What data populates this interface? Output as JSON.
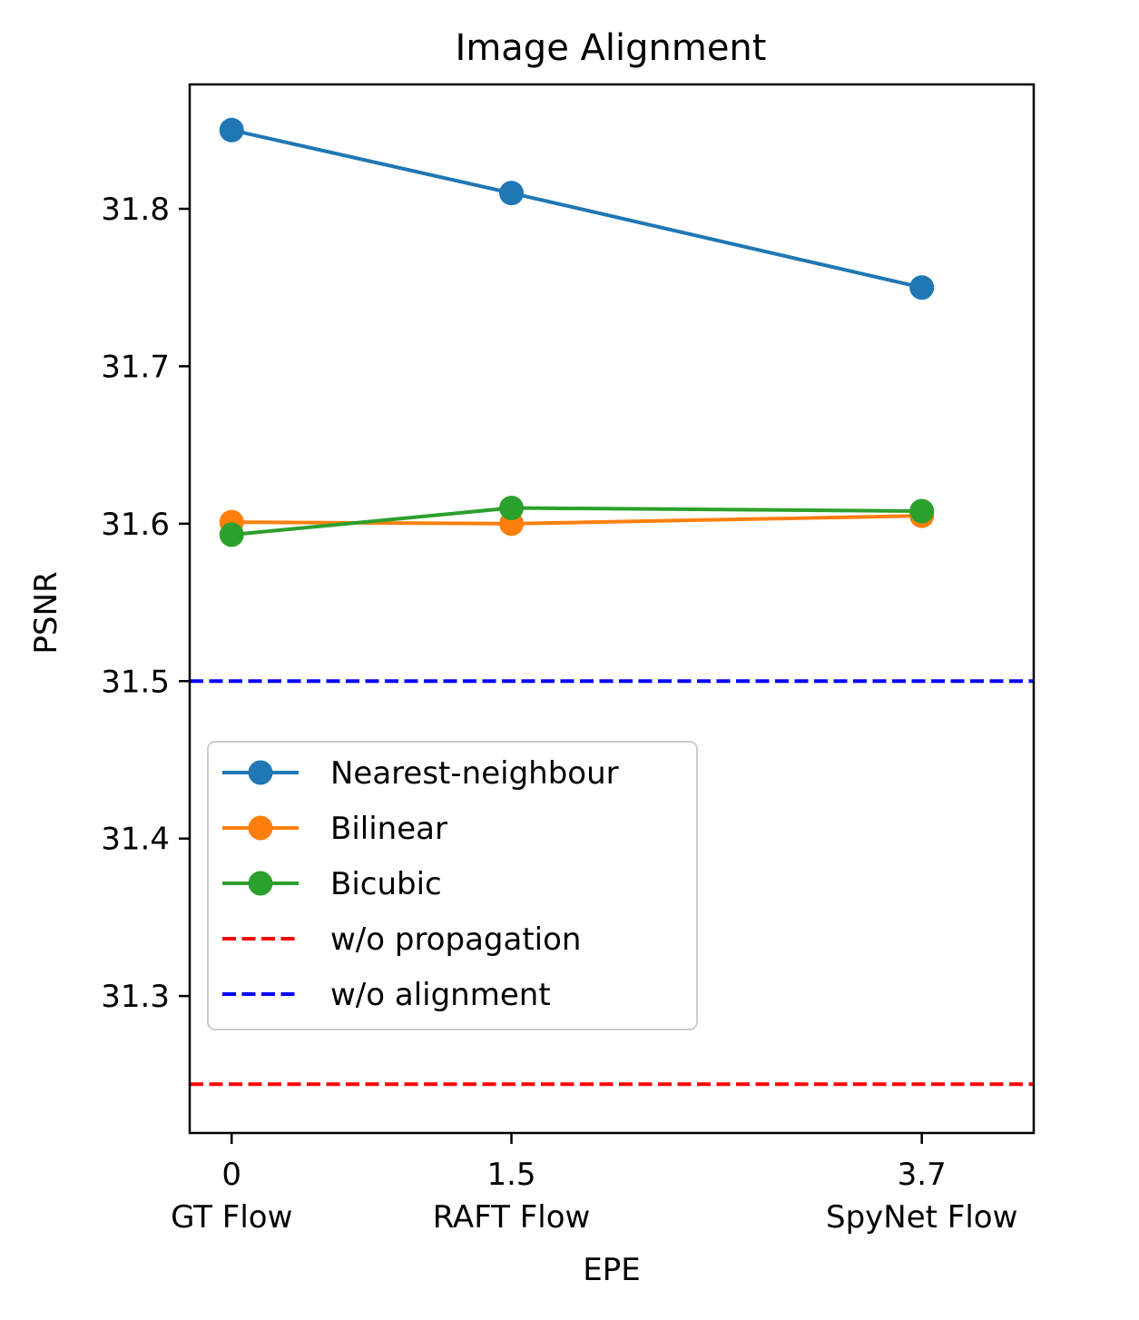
{
  "chart_data": {
    "type": "line",
    "title": "Image Alignment",
    "xlabel": "EPE",
    "ylabel": "PSNR",
    "x": [
      0,
      1.5,
      3.7
    ],
    "x_tick_values": [
      0,
      1.5,
      3.7
    ],
    "x_tick_labels": [
      "0",
      "1.5",
      "3.7"
    ],
    "x_tick_sublabels": [
      "GT Flow",
      "RAFT Flow",
      "SpyNet Flow"
    ],
    "xlim": [
      -0.225,
      4.3
    ],
    "y_ticks": [
      31.3,
      31.4,
      31.5,
      31.6,
      31.7,
      31.8
    ],
    "y_tick_labels": [
      "31.3",
      "31.4",
      "31.5",
      "31.6",
      "31.7",
      "31.8"
    ],
    "ylim": [
      31.213,
      31.879
    ],
    "grid": false,
    "legend_position": "lower-left",
    "series": [
      {
        "name": "Nearest-neighbour",
        "color": "#1f77b4",
        "values": [
          31.85,
          31.81,
          31.75
        ]
      },
      {
        "name": "Bilinear",
        "color": "#ff7f0e",
        "values": [
          31.601,
          31.6,
          31.605
        ]
      },
      {
        "name": "Bicubic",
        "color": "#2ca02c",
        "values": [
          31.593,
          31.61,
          31.608
        ]
      }
    ],
    "reference_lines": [
      {
        "name": "w/o propagation",
        "color": "#ff0000",
        "value": 31.244,
        "style": "dashed"
      },
      {
        "name": "w/o alignment",
        "color": "#0000ff",
        "value": 31.5,
        "style": "dashed"
      }
    ]
  }
}
